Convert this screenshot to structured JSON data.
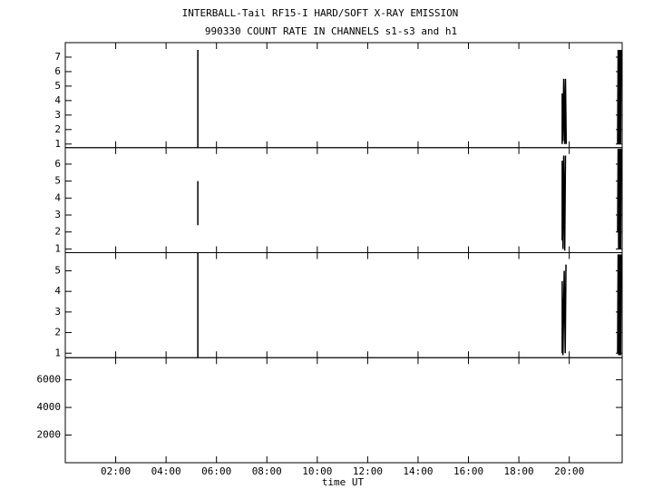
{
  "chart_data": [
    {
      "type": "line",
      "title": "INTERBALL-Tail RF15-I HARD/SOFT X-RAY EMISSION",
      "subtitle": "990330  COUNT RATE IN CHANNELS s1-s3 and h1",
      "xlim": [
        0,
        22.1
      ],
      "ylim": [
        0.75,
        8
      ],
      "yticks": [
        1,
        2,
        3,
        4,
        5,
        6,
        7
      ],
      "series": [
        {
          "color": "#000000",
          "x": [
            5.26,
            5.26,
            null,
            19.72,
            19.72,
            19.75,
            19.78,
            19.82,
            19.85,
            19.88,
            null,
            21.92,
            21.94,
            21.96,
            21.98,
            22.0,
            22.02,
            22.04,
            22.06
          ],
          "values": [
            0.75,
            7.5,
            null,
            1,
            4.5,
            1.2,
            5.5,
            1,
            5.5,
            1,
            null,
            1,
            7.5,
            1,
            7.5,
            1,
            7.5,
            1,
            7.5
          ]
        }
      ]
    },
    {
      "type": "line",
      "xlim": [
        0,
        22.1
      ],
      "ylim": [
        0.78,
        6.97
      ],
      "yticks": [
        1,
        2,
        3,
        4,
        5,
        6
      ],
      "series": [
        {
          "color": "#000000",
          "x": [
            5.26,
            5.26,
            null,
            19.72,
            19.72,
            19.75,
            19.78,
            19.82,
            19.85,
            null,
            21.92,
            21.94,
            21.96,
            21.98,
            22.0,
            22.02,
            22.04,
            22.06
          ],
          "values": [
            2.4,
            5,
            null,
            1.5,
            6.2,
            1,
            6.5,
            0.9,
            6.5,
            null,
            2,
            6.9,
            1,
            6.9,
            1,
            6.9,
            1,
            6.9
          ]
        }
      ]
    },
    {
      "type": "line",
      "xlim": [
        0,
        22.1
      ],
      "ylim": [
        0.78,
        5.88
      ],
      "yticks": [
        1,
        2,
        3,
        4,
        5
      ],
      "series": [
        {
          "color": "#000000",
          "x": [
            5.26,
            5.26,
            null,
            19.72,
            19.72,
            19.75,
            19.8,
            19.84,
            19.87,
            null,
            21.92,
            21.94,
            21.96,
            21.98,
            22.0,
            22.02,
            22.04,
            22.06
          ],
          "values": [
            0.8,
            5.88,
            null,
            1,
            4.5,
            0.9,
            5,
            1,
            5.3,
            null,
            1,
            5.8,
            0.9,
            5.8,
            0.9,
            5.8,
            0.9,
            5.8
          ]
        }
      ]
    },
    {
      "type": "line",
      "xlim": [
        0,
        22.1
      ],
      "ylim": [
        0,
        7600
      ],
      "yticks": [
        2000,
        4000,
        6000
      ],
      "xlabel": "time UT",
      "xticks": [
        {
          "value": 2,
          "label": "02:00"
        },
        {
          "value": 4,
          "label": "04:00"
        },
        {
          "value": 6,
          "label": "06:00"
        },
        {
          "value": 8,
          "label": "08:00"
        },
        {
          "value": 10,
          "label": "10:00"
        },
        {
          "value": 12,
          "label": "12:00"
        },
        {
          "value": 14,
          "label": "14:00"
        },
        {
          "value": 16,
          "label": "16:00"
        },
        {
          "value": 18,
          "label": "18:00"
        },
        {
          "value": 20,
          "label": "20:00"
        }
      ],
      "series": []
    }
  ]
}
